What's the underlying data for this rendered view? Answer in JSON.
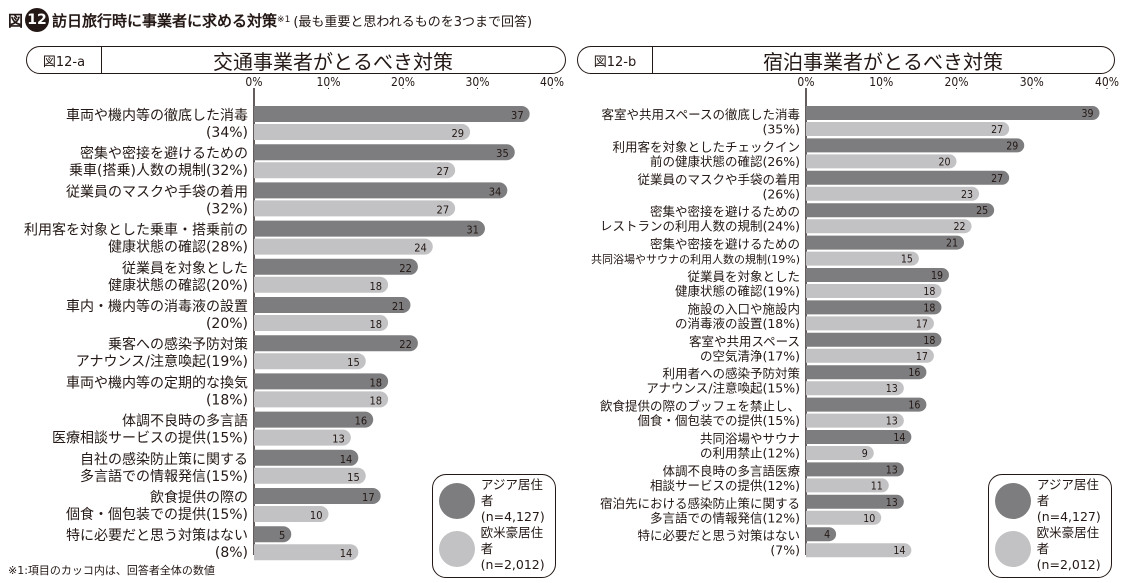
{
  "header": {
    "fig_label": "図",
    "fig_number": "12",
    "title": "訪日旅行時に事業者に求める対策",
    "title_sup": "※1",
    "subtitle": "(最も重要と思われるものを3つまで回答)"
  },
  "footnote": "※1:項目のカッコ内は、回答者全体の数値",
  "colors": {
    "asia": "#7d7d7f",
    "west": "#c2c2c4",
    "ink": "#231815"
  },
  "legend": {
    "asia": "アジア居住者\n(n=4,127)",
    "west": "欧米豪居住者\n(n=2,012)"
  },
  "chart_data": [
    {
      "type": "bar",
      "orientation": "horizontal",
      "id": "図12-a",
      "title": "交通事業者がとるべき対策",
      "xlim": [
        0,
        40
      ],
      "ticks": [
        "0%",
        "10%",
        "20%",
        "30%",
        "40%"
      ],
      "categories": [
        [
          "車両や機内等の徹底した消毒",
          "(34%)"
        ],
        [
          "密集や密接を避けるための",
          "乗車(搭乗)人数の規制(32%)"
        ],
        [
          "従業員のマスクや手袋の着用",
          "(32%)"
        ],
        [
          "利用客を対象とした乗車・搭乗前の",
          "健康状態の確認(28%)"
        ],
        [
          "従業員を対象とした",
          "健康状態の確認(20%)"
        ],
        [
          "車内・機内等の消毒液の設置",
          "(20%)"
        ],
        [
          "乗客への感染予防対策",
          "アナウンス/注意喚起(19%)"
        ],
        [
          "車両や機内等の定期的な換気",
          "(18%)"
        ],
        [
          "体調不良時の多言語",
          "医療相談サービスの提供(15%)"
        ],
        [
          "自社の感染防止策に関する",
          "多言語での情報発信(15%)"
        ],
        [
          "飲食提供の際の",
          "個食・個包装での提供(15%)"
        ],
        [
          "特に必要だと思う対策はない",
          "(8%)"
        ]
      ],
      "series": [
        {
          "name": "アジア居住者(n=4,127)",
          "values": [
            37,
            35,
            34,
            31,
            22,
            21,
            22,
            18,
            16,
            14,
            17,
            5
          ]
        },
        {
          "name": "欧米豪居住者(n=2,012)",
          "values": [
            29,
            27,
            27,
            24,
            18,
            18,
            15,
            18,
            13,
            15,
            10,
            14
          ]
        }
      ]
    },
    {
      "type": "bar",
      "orientation": "horizontal",
      "id": "図12-b",
      "title": "宿泊事業者がとるべき対策",
      "xlim": [
        0,
        40
      ],
      "ticks": [
        "0%",
        "10%",
        "20%",
        "30%",
        "40%"
      ],
      "categories": [
        [
          "客室や共用スペースの徹底した消毒",
          "(35%)"
        ],
        [
          "利用客を対象としたチェックイン",
          "前の健康状態の確認(26%)"
        ],
        [
          "従業員のマスクや手袋の着用",
          "(26%)"
        ],
        [
          "密集や密接を避けるための",
          "レストランの利用人数の規制(24%)"
        ],
        [
          "密集や密接を避けるための",
          "共同浴場やサウナの利用人数の規制(19%)"
        ],
        [
          "従業員を対象とした",
          "健康状態の確認(19%)"
        ],
        [
          "施設の入口や施設内",
          "の消毒液の設置(18%)"
        ],
        [
          "客室や共用スペース",
          "の空気清浄(17%)"
        ],
        [
          "利用者への感染予防対策",
          "アナウンス/注意喚起(15%)"
        ],
        [
          "飲食提供の際のブッフェを禁止し、",
          "個食・個包装での提供(15%)"
        ],
        [
          "共同浴場やサウナ",
          "の利用禁止(12%)"
        ],
        [
          "体調不良時の多言語医療",
          "相談サービスの提供(12%)"
        ],
        [
          "宿泊先における感染防止策に関する",
          "多言語での情報発信(12%)"
        ],
        [
          "特に必要だと思う対策はない",
          "(7%)"
        ]
      ],
      "series": [
        {
          "name": "アジア居住者(n=4,127)",
          "values": [
            39,
            29,
            27,
            25,
            21,
            19,
            18,
            18,
            16,
            16,
            14,
            13,
            13,
            4
          ]
        },
        {
          "name": "欧米豪居住者(n=2,012)",
          "values": [
            27,
            20,
            23,
            22,
            15,
            18,
            17,
            17,
            13,
            13,
            9,
            11,
            10,
            14
          ]
        }
      ]
    }
  ]
}
